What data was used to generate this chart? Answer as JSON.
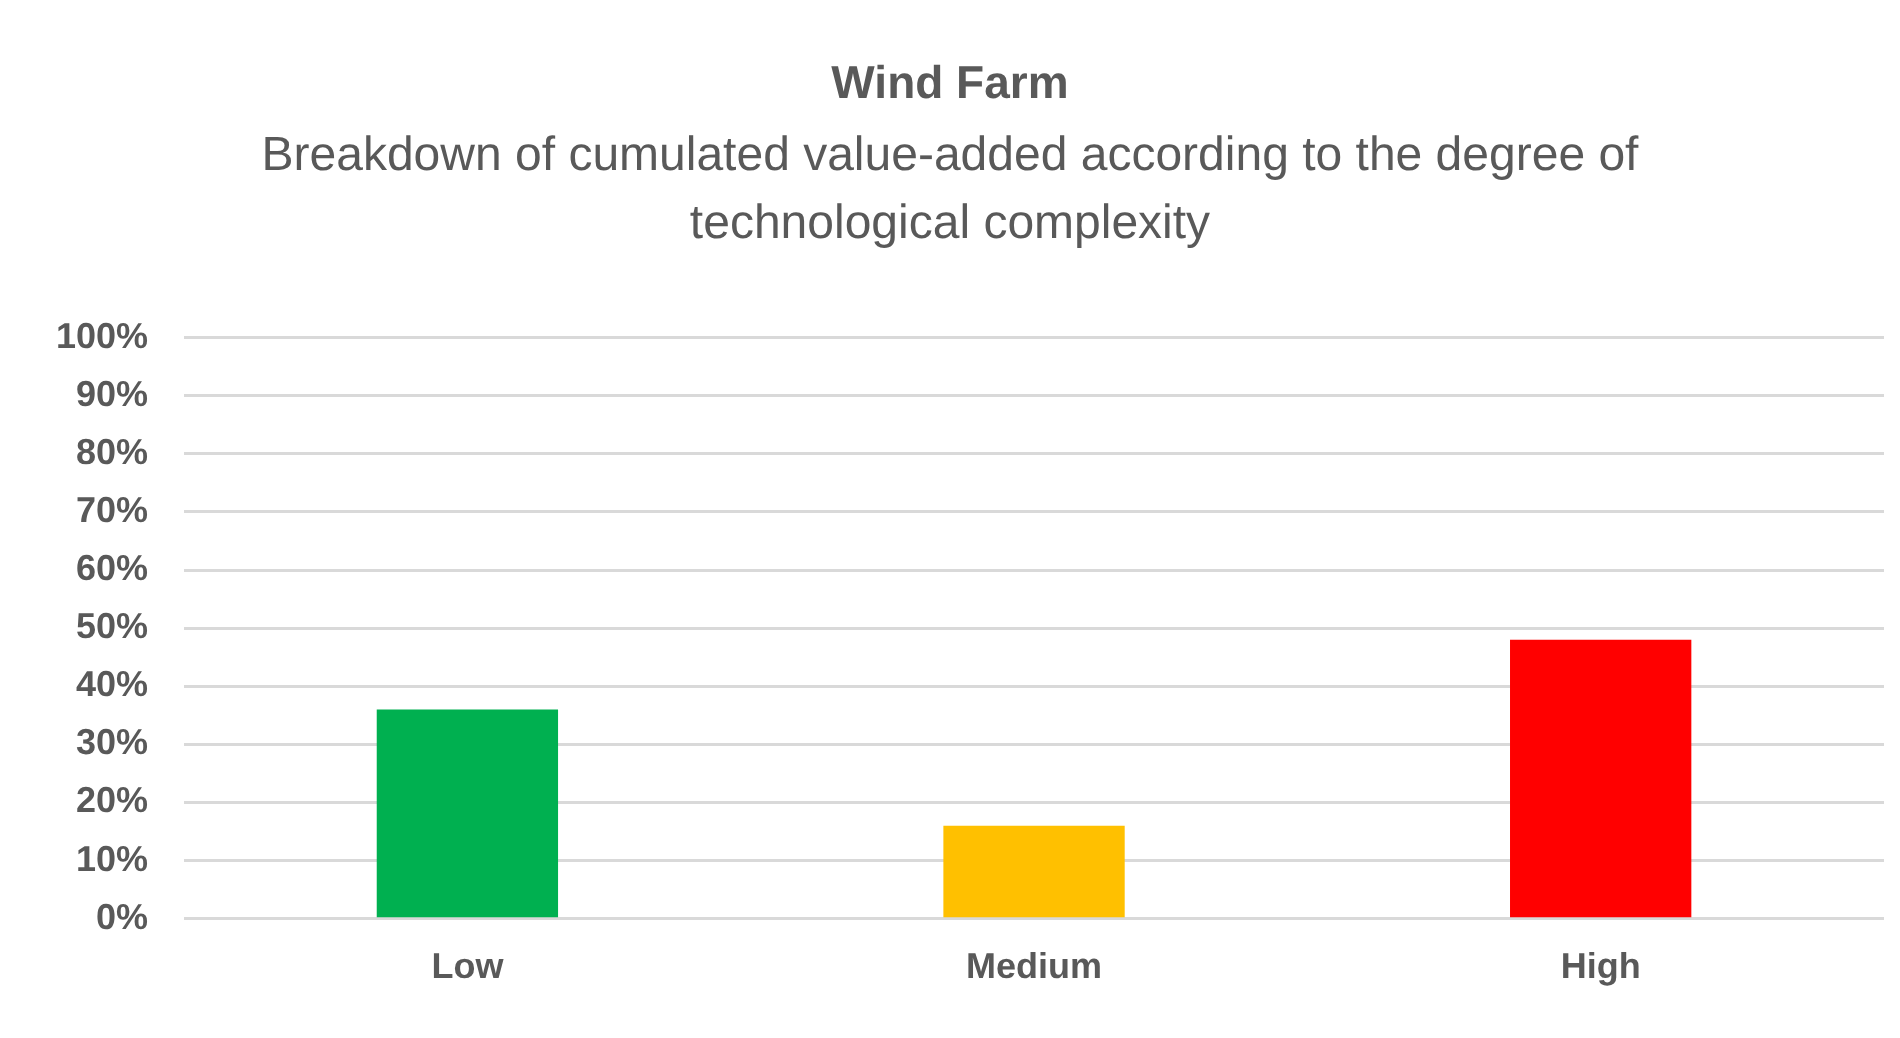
{
  "chart_data": {
    "type": "bar",
    "title": "Wind Farm",
    "subtitle": "Breakdown of cumulated value-added according to the degree of technological complexity",
    "categories": [
      "Low",
      "Medium",
      "High"
    ],
    "values": [
      36,
      16,
      48
    ],
    "colors": [
      "#00b050",
      "#ffc000",
      "#ff0000"
    ],
    "ylim": [
      0,
      100
    ],
    "yticks": [
      {
        "value": 0,
        "label": "0%"
      },
      {
        "value": 10,
        "label": "10%"
      },
      {
        "value": 20,
        "label": "20%"
      },
      {
        "value": 30,
        "label": "30%"
      },
      {
        "value": 40,
        "label": "40%"
      },
      {
        "value": 50,
        "label": "50%"
      },
      {
        "value": 60,
        "label": "60%"
      },
      {
        "value": 70,
        "label": "70%"
      },
      {
        "value": 80,
        "label": "80%"
      },
      {
        "value": 90,
        "label": "90%"
      },
      {
        "value": 100,
        "label": "100%"
      }
    ],
    "grid": "y",
    "legend": false
  }
}
